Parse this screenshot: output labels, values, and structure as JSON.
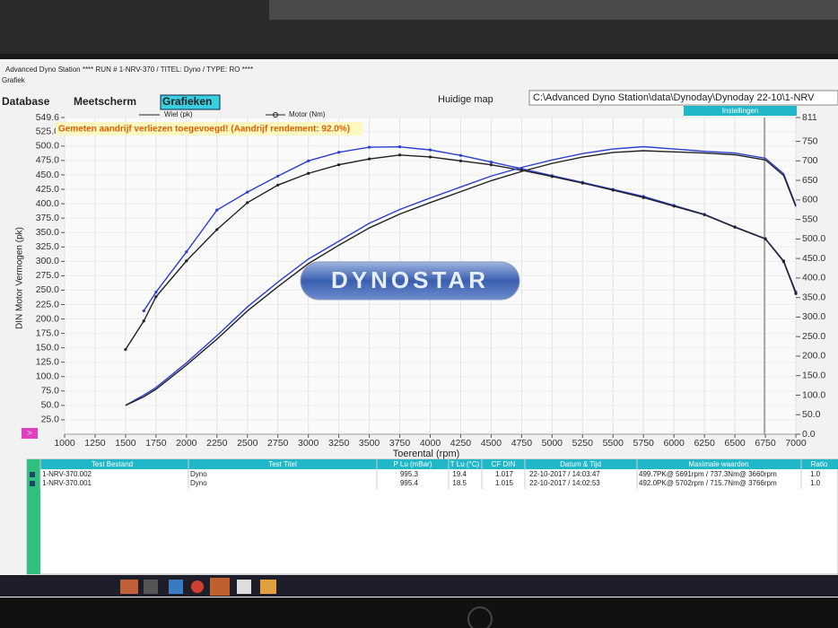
{
  "window": {
    "title": "Advanced Dyno Station **** RUN # 1-NRV-370 / TITEL: Dyno / TYPE: RO ****",
    "subtitle": "Grafiek"
  },
  "menu": [
    "Database",
    "Meetscherm",
    "Grafieken"
  ],
  "folder_label": "Huidige map",
  "folder_path": "C:\\Advanced Dyno Station\\data\\Dynoday\\Dynoday 22-10\\1-NRV",
  "settings_button": "Instellingen",
  "nav_button": ">",
  "chart_data": {
    "type": "line",
    "annotation": "Gemeten aandrijf verliezen toegevoegd! (Aandrijf rendement: 92.0%)",
    "logo": "DYNOSTAR",
    "ylabel": "DIN Motor Vermogen (pk)",
    "xlabel": "Toerental (rpm)",
    "legend": [
      "Wiel (pk)",
      "Motor (Nm)"
    ],
    "grid": true,
    "x": [
      1500,
      1650,
      1750,
      2000,
      2250,
      2500,
      2750,
      3000,
      3250,
      3500,
      3750,
      4000,
      4250,
      4500,
      4750,
      5000,
      5250,
      5500,
      5750,
      6000,
      6250,
      6500,
      6750,
      6900,
      7000
    ],
    "series": [
      {
        "color": "#2b3fd0",
        "axis": "y2",
        "markers": true,
        "values": [
          null,
          316,
          364,
          467,
          574,
          620,
          661,
          700,
          722,
          735,
          736,
          728,
          714,
          697,
          680,
          662,
          645,
          627,
          609,
          586,
          563,
          531,
          501,
          444,
          364
        ]
      },
      {
        "color": "#222222",
        "axis": "y2",
        "markers": true,
        "values": [
          217,
          290,
          352,
          444,
          524,
          593,
          638,
          668,
          690,
          705,
          715,
          710,
          700,
          690,
          676,
          660,
          643,
          625,
          606,
          584,
          562,
          530,
          500,
          442,
          360
        ]
      },
      {
        "color": "#2b3fd0",
        "axis": "y",
        "markers": false,
        "values": [
          50,
          68,
          81,
          124,
          171,
          221,
          264,
          304,
          335,
          366,
          390,
          410,
          429,
          448,
          463,
          476,
          487,
          495,
          499,
          495,
          491,
          488,
          479,
          452,
          397
        ]
      },
      {
        "color": "#222222",
        "axis": "y",
        "markers": false,
        "values": [
          50,
          65,
          78,
          120,
          165,
          214,
          256,
          296,
          328,
          358,
          382,
          402,
          421,
          440,
          456,
          470,
          481,
          489,
          492,
          490,
          488,
          485,
          476,
          449,
          395
        ]
      }
    ],
    "xlim": [
      1000,
      7000
    ],
    "xticks": [
      1000,
      1250,
      1500,
      1750,
      2000,
      2250,
      2500,
      2750,
      3000,
      3250,
      3500,
      3750,
      4000,
      4250,
      4500,
      4750,
      5000,
      5250,
      5500,
      5750,
      6000,
      6250,
      6500,
      6750,
      7000
    ],
    "ylim": [
      0,
      549.6
    ],
    "yticks": [
      {
        "value": 25,
        "label": "25.0"
      },
      {
        "value": 50,
        "label": "50.0"
      },
      {
        "value": 75,
        "label": "75.0"
      },
      {
        "value": 100,
        "label": "100.0"
      },
      {
        "value": 125,
        "label": "125.0"
      },
      {
        "value": 150,
        "label": "150.0"
      },
      {
        "value": 175,
        "label": "175.0"
      },
      {
        "value": 200,
        "label": "200.0"
      },
      {
        "value": 225,
        "label": "225.0"
      },
      {
        "value": 250,
        "label": "250.0"
      },
      {
        "value": 275,
        "label": "275.0"
      },
      {
        "value": 300,
        "label": "300.0"
      },
      {
        "value": 325,
        "label": "325.0"
      },
      {
        "value": 350,
        "label": "350.0"
      },
      {
        "value": 375,
        "label": "375.0"
      },
      {
        "value": 400,
        "label": "400.0"
      },
      {
        "value": 425,
        "label": "425.0"
      },
      {
        "value": 450,
        "label": "450.0"
      },
      {
        "value": 475,
        "label": "475.0"
      },
      {
        "value": 500,
        "label": "500.0"
      },
      {
        "value": 525,
        "label": "525.0"
      },
      549.6
    ],
    "y2lim": [
      0,
      811
    ],
    "y2ticks": [
      {
        "value": 0,
        "label": "0.0"
      },
      {
        "value": 50,
        "label": "50.0"
      },
      {
        "value": 100,
        "label": "100.0"
      },
      {
        "value": 150,
        "label": "150.0"
      },
      {
        "value": 200,
        "label": "200.0"
      },
      {
        "value": 250,
        "label": "250.0"
      },
      {
        "value": 300,
        "label": "300.0"
      },
      {
        "value": 350,
        "label": "350.0"
      },
      {
        "value": 400,
        "label": "400.0"
      },
      {
        "value": 450,
        "label": "450.0"
      },
      {
        "value": 500,
        "label": "500.0"
      },
      550,
      600,
      650,
      700,
      750,
      811
    ]
  },
  "table": {
    "headers": [
      "Test Bestand",
      "Test Titel",
      "P Lu (mBar)",
      "T Lu (°C)",
      "CF DIN",
      "Datum & Tijd",
      "Maximale waarden",
      "Ratio"
    ],
    "rows": [
      [
        "1-NRV-370.002",
        "Dyno",
        "995.3",
        "19.4",
        "1.017",
        "22-10-2017 / 14:03:47",
        "499.7PK@ 5691rpm / 737.3Nm@ 3660rpm",
        "1.0"
      ],
      [
        "1-NRV-370.001",
        "Dyno",
        "995.4",
        "18.5",
        "1.015",
        "22-10-2017 / 14:02:53",
        "492.0PK@ 5702rpm / 715.7Nm@ 3766rpm",
        "1.0"
      ]
    ]
  }
}
